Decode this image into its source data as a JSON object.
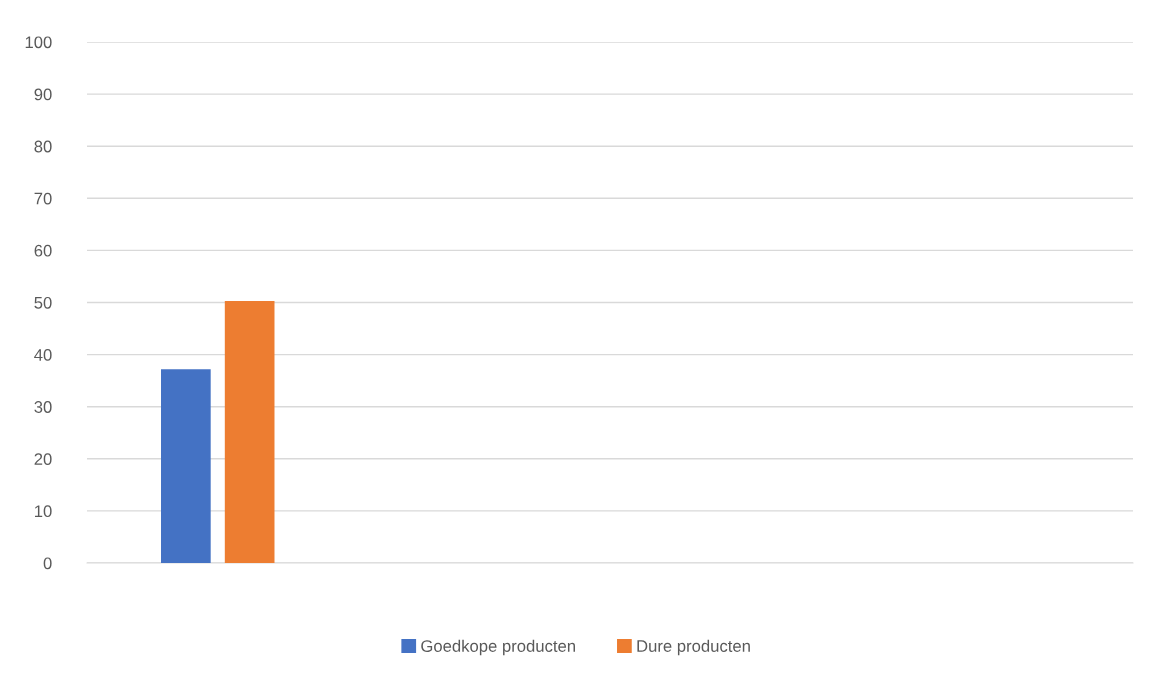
{
  "chart_data": {
    "type": "bar",
    "categories": [
      null,
      null,
      null,
      null
    ],
    "series": [
      {
        "name": "Goedkope producten",
        "color": "#4472c4",
        "values": [
          37.2,
          null,
          null,
          null
        ]
      },
      {
        "name": "Dure producten",
        "color": "#ed7d31",
        "values": [
          50.3,
          null,
          null,
          null
        ]
      }
    ],
    "ylim": [
      0,
      100
    ],
    "yticks": [
      0,
      10,
      20,
      30,
      40,
      50,
      60,
      70,
      80,
      90,
      100
    ],
    "grid": "y",
    "legend": "bottom"
  }
}
